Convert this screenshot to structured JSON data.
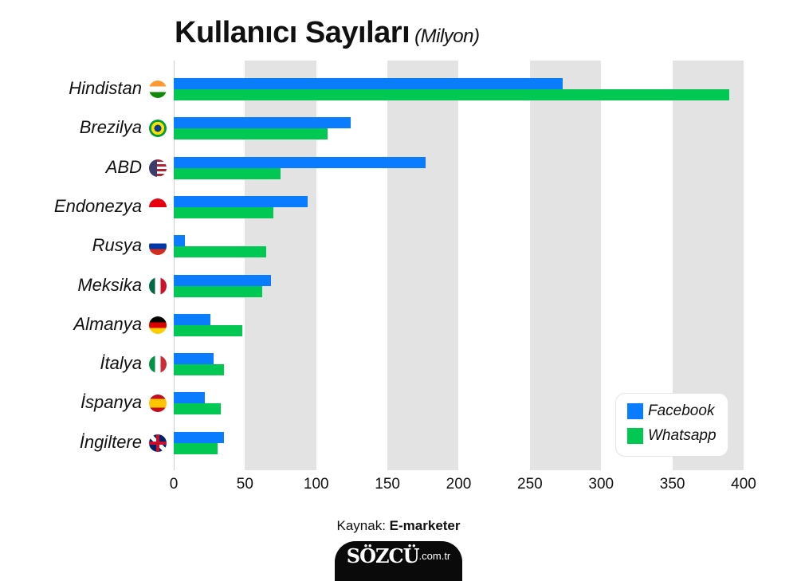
{
  "title": "Kullanıcı Sayıları",
  "subtitle": "(Milyon)",
  "source_label": "Kaynak:",
  "source_name": "E-marketer",
  "logo": {
    "brand": "SÖZCÜ",
    "domain": ".com.tr"
  },
  "legend": [
    {
      "label": "Facebook",
      "color": "#0a7cff"
    },
    {
      "label": "Whatsapp",
      "color": "#00c853"
    }
  ],
  "ticks": [
    "0",
    "50",
    "100",
    "150",
    "200",
    "250",
    "300",
    "350",
    "400"
  ],
  "countries": [
    {
      "name": "Hindistan",
      "flag": "india-flag-icon"
    },
    {
      "name": "Brezilya",
      "flag": "brazil-flag-icon"
    },
    {
      "name": "ABD",
      "flag": "usa-flag-icon"
    },
    {
      "name": "Endonezya",
      "flag": "indonesia-flag-icon"
    },
    {
      "name": "Rusya",
      "flag": "russia-flag-icon"
    },
    {
      "name": "Meksika",
      "flag": "mexico-flag-icon"
    },
    {
      "name": "Almanya",
      "flag": "germany-flag-icon"
    },
    {
      "name": "İtalya",
      "flag": "italy-flag-icon"
    },
    {
      "name": "İspanya",
      "flag": "spain-flag-icon"
    },
    {
      "name": "İngiltere",
      "flag": "uk-flag-icon"
    }
  ],
  "chart_data": {
    "type": "bar",
    "orientation": "horizontal",
    "title": "Kullanıcı Sayıları (Milyon)",
    "xlabel": "",
    "ylabel": "",
    "xlim": [
      0,
      400
    ],
    "xticks": [
      0,
      50,
      100,
      150,
      200,
      250,
      300,
      350,
      400
    ],
    "grid": "alternating vertical bands every 50",
    "legend_position": "lower right",
    "categories": [
      "Hindistan",
      "Brezilya",
      "ABD",
      "Endonezya",
      "Rusya",
      "Meksika",
      "Almanya",
      "İtalya",
      "İspanya",
      "İngiltere"
    ],
    "series": [
      {
        "name": "Facebook",
        "color": "#0a7cff",
        "values": [
          273,
          124,
          177,
          94,
          8,
          68,
          26,
          28,
          22,
          35
        ]
      },
      {
        "name": "Whatsapp",
        "color": "#00c853",
        "values": [
          390,
          108,
          75,
          70,
          65,
          62,
          48,
          35,
          33,
          31
        ]
      }
    ],
    "source": "Kaynak: E-marketer"
  }
}
